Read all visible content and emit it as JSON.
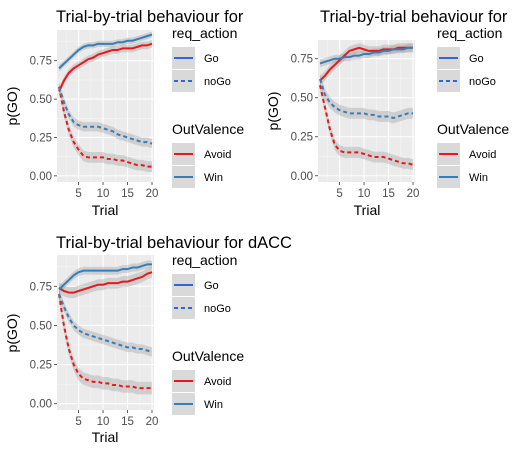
{
  "chart_data": [
    {
      "type": "line",
      "title": "Trial-by-trial behaviour for",
      "xlabel": "Trial",
      "ylabel": "p(GO)",
      "xlim": [
        1,
        20
      ],
      "ylim": [
        -0.04,
        0.95
      ],
      "x_ticks": [
        5,
        10,
        15,
        20
      ],
      "y_ticks": [
        0.0,
        0.25,
        0.5,
        0.75
      ],
      "y_tick_labels": [
        "0.00",
        "0.25",
        "0.50",
        "0.75"
      ],
      "grid": true,
      "legend_position": "right",
      "series": [
        {
          "req_action": "Go",
          "outvalence": "Avoid",
          "color": "#e41a1c",
          "dash": "solid",
          "x": [
            1,
            2,
            3,
            4,
            5,
            6,
            7,
            8,
            9,
            10,
            11,
            12,
            13,
            14,
            15,
            16,
            17,
            18,
            19,
            20
          ],
          "y": [
            0.55,
            0.62,
            0.67,
            0.7,
            0.72,
            0.74,
            0.76,
            0.77,
            0.79,
            0.8,
            0.81,
            0.82,
            0.82,
            0.83,
            0.83,
            0.83,
            0.84,
            0.85,
            0.85,
            0.86
          ],
          "se": 0.025
        },
        {
          "req_action": "Go",
          "outvalence": "Win",
          "color": "#377eb8",
          "dash": "solid",
          "x": [
            1,
            2,
            3,
            4,
            5,
            6,
            7,
            8,
            9,
            10,
            11,
            12,
            13,
            14,
            15,
            16,
            17,
            18,
            19,
            20
          ],
          "y": [
            0.7,
            0.73,
            0.76,
            0.79,
            0.82,
            0.84,
            0.85,
            0.85,
            0.86,
            0.86,
            0.86,
            0.86,
            0.87,
            0.87,
            0.88,
            0.88,
            0.89,
            0.9,
            0.91,
            0.92
          ],
          "se": 0.02
        },
        {
          "req_action": "noGo",
          "outvalence": "Avoid",
          "color": "#e41a1c",
          "dash": "dashed",
          "x": [
            1,
            2,
            3,
            4,
            5,
            6,
            7,
            8,
            9,
            10,
            11,
            12,
            13,
            14,
            15,
            16,
            17,
            18,
            19,
            20
          ],
          "y": [
            0.58,
            0.42,
            0.3,
            0.22,
            0.17,
            0.13,
            0.12,
            0.12,
            0.12,
            0.12,
            0.11,
            0.11,
            0.1,
            0.1,
            0.09,
            0.08,
            0.07,
            0.07,
            0.06,
            0.06
          ],
          "se": 0.035
        },
        {
          "req_action": "noGo",
          "outvalence": "Win",
          "color": "#377eb8",
          "dash": "dashed",
          "x": [
            1,
            2,
            3,
            4,
            5,
            6,
            7,
            8,
            9,
            10,
            11,
            12,
            13,
            14,
            15,
            16,
            17,
            18,
            19,
            20
          ],
          "y": [
            0.58,
            0.48,
            0.4,
            0.35,
            0.33,
            0.32,
            0.32,
            0.32,
            0.32,
            0.31,
            0.3,
            0.29,
            0.27,
            0.26,
            0.25,
            0.24,
            0.23,
            0.22,
            0.22,
            0.21
          ],
          "se": 0.03
        }
      ]
    },
    {
      "type": "line",
      "title": "Trial-by-trial behaviour for",
      "xlabel": "Trial",
      "ylabel": "p(GO)",
      "xlim": [
        1,
        20
      ],
      "ylim": [
        -0.04,
        0.87
      ],
      "x_ticks": [
        5,
        10,
        15,
        20
      ],
      "y_ticks": [
        0.0,
        0.25,
        0.5,
        0.75
      ],
      "y_tick_labels": [
        "0.00",
        "0.25",
        "0.50",
        "0.75"
      ],
      "grid": true,
      "legend_position": "right",
      "series": [
        {
          "req_action": "Go",
          "outvalence": "Avoid",
          "color": "#e41a1c",
          "dash": "solid",
          "x": [
            1,
            2,
            3,
            4,
            5,
            6,
            7,
            8,
            9,
            10,
            11,
            12,
            13,
            14,
            15,
            16,
            17,
            18,
            19,
            20
          ],
          "y": [
            0.61,
            0.64,
            0.68,
            0.71,
            0.74,
            0.77,
            0.8,
            0.81,
            0.82,
            0.81,
            0.8,
            0.8,
            0.8,
            0.81,
            0.81,
            0.81,
            0.82,
            0.82,
            0.82,
            0.82
          ],
          "se": 0.03
        },
        {
          "req_action": "Go",
          "outvalence": "Win",
          "color": "#377eb8",
          "dash": "solid",
          "x": [
            1,
            2,
            3,
            4,
            5,
            6,
            7,
            8,
            9,
            10,
            11,
            12,
            13,
            14,
            15,
            16,
            17,
            18,
            19,
            20
          ],
          "y": [
            0.72,
            0.73,
            0.74,
            0.75,
            0.75,
            0.76,
            0.76,
            0.77,
            0.77,
            0.78,
            0.78,
            0.79,
            0.79,
            0.8,
            0.8,
            0.81,
            0.81,
            0.81,
            0.82,
            0.82
          ],
          "se": 0.025
        },
        {
          "req_action": "noGo",
          "outvalence": "Avoid",
          "color": "#e41a1c",
          "dash": "dashed",
          "x": [
            1,
            2,
            3,
            4,
            5,
            6,
            7,
            8,
            9,
            10,
            11,
            12,
            13,
            14,
            15,
            16,
            17,
            18,
            19,
            20
          ],
          "y": [
            0.58,
            0.44,
            0.3,
            0.2,
            0.16,
            0.15,
            0.15,
            0.15,
            0.15,
            0.14,
            0.13,
            0.12,
            0.12,
            0.12,
            0.11,
            0.1,
            0.09,
            0.08,
            0.08,
            0.07
          ],
          "se": 0.035
        },
        {
          "req_action": "noGo",
          "outvalence": "Win",
          "color": "#377eb8",
          "dash": "dashed",
          "x": [
            1,
            2,
            3,
            4,
            5,
            6,
            7,
            8,
            9,
            10,
            11,
            12,
            13,
            14,
            15,
            16,
            17,
            18,
            19,
            20
          ],
          "y": [
            0.62,
            0.52,
            0.47,
            0.44,
            0.42,
            0.41,
            0.4,
            0.4,
            0.4,
            0.4,
            0.39,
            0.39,
            0.38,
            0.38,
            0.38,
            0.37,
            0.38,
            0.39,
            0.4,
            0.4
          ],
          "se": 0.035
        }
      ]
    },
    {
      "type": "line",
      "title": "Trial-by-trial behaviour for dACC",
      "xlabel": "Trial",
      "ylabel": "p(GO)",
      "xlim": [
        1,
        20
      ],
      "ylim": [
        -0.04,
        0.95
      ],
      "x_ticks": [
        5,
        10,
        15,
        20
      ],
      "y_ticks": [
        0.0,
        0.25,
        0.5,
        0.75
      ],
      "y_tick_labels": [
        "0.00",
        "0.25",
        "0.50",
        "0.75"
      ],
      "grid": true,
      "legend_position": "right",
      "series": [
        {
          "req_action": "Go",
          "outvalence": "Avoid",
          "color": "#e41a1c",
          "dash": "solid",
          "x": [
            1,
            2,
            3,
            4,
            5,
            6,
            7,
            8,
            9,
            10,
            11,
            12,
            13,
            14,
            15,
            16,
            17,
            18,
            19,
            20
          ],
          "y": [
            0.74,
            0.72,
            0.71,
            0.71,
            0.72,
            0.73,
            0.74,
            0.75,
            0.76,
            0.76,
            0.77,
            0.77,
            0.77,
            0.78,
            0.78,
            0.79,
            0.8,
            0.81,
            0.83,
            0.84
          ],
          "se": 0.035
        },
        {
          "req_action": "Go",
          "outvalence": "Win",
          "color": "#377eb8",
          "dash": "solid",
          "x": [
            1,
            2,
            3,
            4,
            5,
            6,
            7,
            8,
            9,
            10,
            11,
            12,
            13,
            14,
            15,
            16,
            17,
            18,
            19,
            20
          ],
          "y": [
            0.73,
            0.76,
            0.79,
            0.82,
            0.84,
            0.85,
            0.85,
            0.85,
            0.85,
            0.85,
            0.85,
            0.85,
            0.85,
            0.86,
            0.86,
            0.87,
            0.87,
            0.88,
            0.89,
            0.89
          ],
          "se": 0.025
        },
        {
          "req_action": "noGo",
          "outvalence": "Avoid",
          "color": "#e41a1c",
          "dash": "dashed",
          "x": [
            1,
            2,
            3,
            4,
            5,
            6,
            7,
            8,
            9,
            10,
            11,
            12,
            13,
            14,
            15,
            16,
            17,
            18,
            19,
            20
          ],
          "y": [
            0.7,
            0.5,
            0.35,
            0.25,
            0.19,
            0.16,
            0.15,
            0.14,
            0.14,
            0.13,
            0.13,
            0.12,
            0.12,
            0.11,
            0.11,
            0.11,
            0.1,
            0.1,
            0.1,
            0.1
          ],
          "se": 0.04
        },
        {
          "req_action": "noGo",
          "outvalence": "Win",
          "color": "#377eb8",
          "dash": "dashed",
          "x": [
            1,
            2,
            3,
            4,
            5,
            6,
            7,
            8,
            9,
            10,
            11,
            12,
            13,
            14,
            15,
            16,
            17,
            18,
            19,
            20
          ],
          "y": [
            0.7,
            0.62,
            0.55,
            0.5,
            0.47,
            0.45,
            0.44,
            0.43,
            0.42,
            0.41,
            0.4,
            0.39,
            0.38,
            0.37,
            0.36,
            0.36,
            0.35,
            0.35,
            0.34,
            0.33
          ],
          "se": 0.03
        }
      ]
    }
  ],
  "legends": [
    {
      "req_action": {
        "title": "req_action",
        "items": [
          {
            "label": "Go",
            "color": "#3266d6",
            "dash": "solid"
          },
          {
            "label": "noGo",
            "color": "#3266d6",
            "dash": "dashed"
          }
        ]
      },
      "outvalence": {
        "title": "OutValence",
        "items": [
          {
            "label": "Avoid",
            "color": "#e41a1c",
            "dash": "solid"
          },
          {
            "label": "Win",
            "color": "#377eb8",
            "dash": "solid"
          }
        ]
      }
    },
    {
      "req_action": {
        "title": "req_action",
        "items": [
          {
            "label": "Go",
            "color": "#3266d6",
            "dash": "solid"
          },
          {
            "label": "noGo",
            "color": "#3266d6",
            "dash": "dashed"
          }
        ]
      },
      "outvalence": {
        "title": "OutValence",
        "items": [
          {
            "label": "Avoid",
            "color": "#e41a1c",
            "dash": "solid"
          },
          {
            "label": "Win",
            "color": "#377eb8",
            "dash": "solid"
          }
        ]
      }
    },
    {
      "req_action": {
        "title": "req_action",
        "items": [
          {
            "label": "Go",
            "color": "#3266d6",
            "dash": "solid"
          },
          {
            "label": "noGo",
            "color": "#3266d6",
            "dash": "dashed"
          }
        ]
      },
      "outvalence": {
        "title": "OutValence",
        "items": [
          {
            "label": "Avoid",
            "color": "#e41a1c",
            "dash": "solid"
          },
          {
            "label": "Win",
            "color": "#377eb8",
            "dash": "solid"
          }
        ]
      }
    }
  ]
}
